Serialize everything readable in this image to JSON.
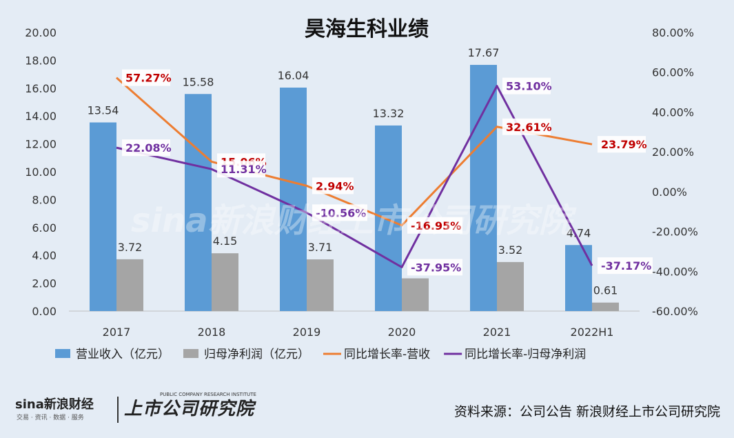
{
  "chart_data": {
    "type": "bar",
    "title": "昊海生科业绩",
    "categories": [
      "2017",
      "2018",
      "2019",
      "2020",
      "2021",
      "2022H1"
    ],
    "series": [
      {
        "name": "营业收入（亿元）",
        "type": "bar",
        "axis": "left",
        "color": "#5b9bd5",
        "values": [
          13.54,
          15.58,
          16.04,
          13.32,
          17.67,
          4.74
        ],
        "labels": [
          "13.54",
          "15.58",
          "16.04",
          "13.32",
          "17.67",
          "4.74"
        ]
      },
      {
        "name": "归母净利润（亿元）",
        "type": "bar",
        "axis": "left",
        "color": "#a5a5a5",
        "values": [
          3.72,
          4.15,
          3.71,
          2.35,
          3.52,
          0.61
        ],
        "labels": [
          "3.72",
          "4.15",
          "3.71",
          "",
          "3.52",
          "0.61"
        ]
      },
      {
        "name": "同比增长率-营收",
        "type": "line",
        "axis": "right",
        "color": "#ed7d31",
        "values": [
          57.27,
          15.06,
          2.94,
          -16.95,
          32.61,
          23.79
        ],
        "labels": [
          "57.27%",
          "15.06%",
          "2.94%",
          "-16.95%",
          "32.61%",
          "23.79%"
        ]
      },
      {
        "name": "同比增长率-归母净利润",
        "type": "line",
        "axis": "right",
        "color": "#7030a0",
        "values": [
          22.08,
          11.31,
          -10.56,
          -37.95,
          53.1,
          -37.17
        ],
        "labels": [
          "22.08%",
          "11.31%",
          "-10.56%",
          "-37.95%",
          "53.10%",
          "-37.17%"
        ]
      }
    ],
    "left_axis": {
      "ylim": [
        0,
        20
      ],
      "ticks": [
        "0.00",
        "2.00",
        "4.00",
        "6.00",
        "8.00",
        "10.00",
        "12.00",
        "14.00",
        "16.00",
        "18.00",
        "20.00"
      ]
    },
    "right_axis": {
      "ylim": [
        -60,
        80
      ],
      "ticks": [
        "-60.00%",
        "-40.00%",
        "-20.00%",
        "0.00%",
        "20.00%",
        "40.00%",
        "60.00%",
        "80.00%"
      ]
    },
    "legend": "bottom",
    "grid": false
  },
  "footer": {
    "source": "资料来源：公司公告 新浪财经上市公司研究院",
    "sina_logo": "sina新浪财经",
    "sina_sub": "交易 · 资讯 · 数据 · 服务",
    "research_logo": "上市公司研究院",
    "research_sup": "PUBLIC COMPANY RESEARCH INSTITUTE"
  },
  "watermark": "sina新浪财经上市公司研究院"
}
